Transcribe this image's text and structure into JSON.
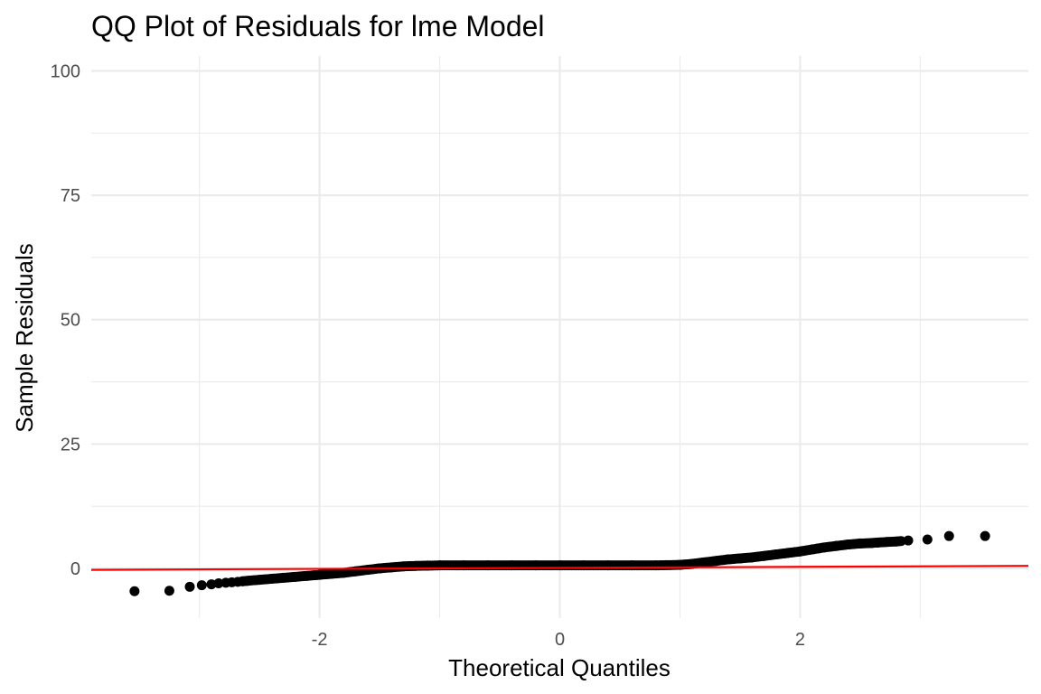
{
  "chart_data": {
    "type": "scatter",
    "title": "QQ Plot of Residuals for lme Model",
    "xlabel": "Theoretical Quantiles",
    "ylabel": "Sample Residuals",
    "xlim": [
      -3.9,
      3.9
    ],
    "ylim": [
      -10,
      103
    ],
    "x_ticks": [
      -2,
      0,
      2
    ],
    "x_tick_labels": [
      "-2",
      "0",
      "2"
    ],
    "y_ticks": [
      0,
      25,
      50,
      75,
      100
    ],
    "y_tick_labels": [
      "0",
      "25",
      "50",
      "75",
      "100"
    ],
    "grid": true,
    "legend": "none",
    "point_color": "#000000",
    "line_color": "#ff0000",
    "reference_line": {
      "x": [
        -3.9,
        3.9
      ],
      "y": [
        -0.3,
        0.5
      ]
    },
    "series": [
      {
        "x": [
          -3.54,
          -3.25,
          -3.08,
          -2.98,
          -2.9,
          -2.84,
          -2.78,
          -2.73,
          -2.68,
          -2.64,
          -2.6,
          -2.5,
          -2.4,
          -2.3,
          -2.2,
          -2.1,
          -2.0,
          -1.9,
          -1.8,
          -1.7,
          -1.6,
          -1.5,
          -1.4,
          -1.3,
          -1.2,
          -1.1,
          -1.0,
          -0.8,
          -0.6,
          -0.4,
          -0.2,
          0.0,
          0.2,
          0.4,
          0.6,
          0.8,
          1.0,
          1.1,
          1.2,
          1.3,
          1.4,
          1.5,
          1.6,
          1.7,
          1.8,
          1.9,
          2.0,
          2.1,
          2.15,
          2.2,
          2.3,
          2.4,
          2.5,
          2.6,
          2.65,
          2.72,
          2.8,
          2.9,
          3.06,
          3.24,
          3.54
        ],
        "y": [
          -4.6,
          -4.5,
          -3.7,
          -3.4,
          -3.2,
          -3.0,
          -2.9,
          -2.8,
          -2.7,
          -2.6,
          -2.5,
          -2.3,
          -2.1,
          -1.9,
          -1.7,
          -1.5,
          -1.3,
          -1.1,
          -0.9,
          -0.6,
          -0.3,
          0.0,
          0.2,
          0.4,
          0.5,
          0.55,
          0.6,
          0.6,
          0.6,
          0.6,
          0.6,
          0.6,
          0.6,
          0.6,
          0.6,
          0.6,
          0.7,
          0.9,
          1.2,
          1.5,
          1.8,
          2.0,
          2.2,
          2.5,
          2.8,
          3.1,
          3.4,
          3.8,
          4.0,
          4.2,
          4.5,
          4.8,
          5.0,
          5.1,
          5.2,
          5.3,
          5.4,
          5.6,
          5.8,
          6.5,
          6.5
        ]
      }
    ]
  }
}
